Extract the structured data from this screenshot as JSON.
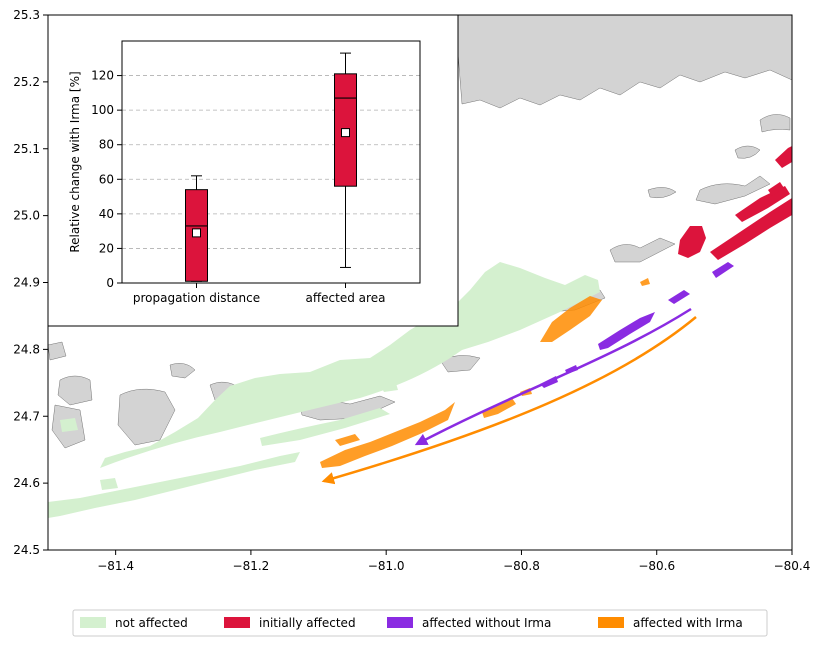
{
  "colors": {
    "land": "#d3d3d3",
    "not_affected": "#d4f0cf",
    "initially_affected": "#dc143c",
    "affected_without_irma": "#8a2be2",
    "affected_with_irma": "#ff8c00",
    "grid": "#b0b0b0"
  },
  "legend": {
    "items": [
      {
        "label": "not affected",
        "color": "#d4f0cf"
      },
      {
        "label": "initially affected",
        "color": "#dc143c"
      },
      {
        "label": "affected without Irma",
        "color": "#8a2be2"
      },
      {
        "label": "affected with Irma",
        "color": "#ff8c00"
      }
    ]
  },
  "chart_data": [
    {
      "type": "map",
      "xlim": [
        -81.5,
        -80.4
      ],
      "ylim": [
        24.5,
        25.3
      ],
      "x_ticks": [
        "−81.4",
        "−81.2",
        "−81.0",
        "−80.8",
        "−80.6",
        "−80.4"
      ],
      "x_tick_values": [
        -81.4,
        -81.2,
        -81.0,
        -80.8,
        -80.6,
        -80.4
      ],
      "y_ticks": [
        "24.5",
        "24.6",
        "24.7",
        "24.8",
        "24.9",
        "25.0",
        "25.1",
        "25.2",
        "25.3"
      ],
      "y_tick_values": [
        24.5,
        24.6,
        24.7,
        24.8,
        24.9,
        25.0,
        25.1,
        25.2,
        25.3
      ],
      "arrows": [
        {
          "series": "affected without Irma",
          "from": [
            -80.56,
            24.861
          ],
          "to": [
            -80.96,
            24.657
          ]
        },
        {
          "series": "affected with Irma",
          "from": [
            -80.545,
            24.85
          ],
          "to": [
            -81.1,
            24.607
          ]
        }
      ]
    },
    {
      "type": "box",
      "ylabel": "Relative change with Irma [%]",
      "ylim": [
        0,
        140
      ],
      "y_ticks": [
        0,
        20,
        40,
        60,
        80,
        100,
        120
      ],
      "grid": "y",
      "categories": [
        "propagation distance",
        "affected area"
      ],
      "boxes": [
        {
          "category": "propagation distance",
          "whisker_low": 1,
          "q1": 1,
          "median": 33,
          "q3": 54,
          "whisker_high": 62,
          "mean": 29
        },
        {
          "category": "affected area",
          "whisker_low": 9,
          "q1": 56,
          "median": 107,
          "q3": 121,
          "whisker_high": 133,
          "mean": 87
        }
      ]
    }
  ]
}
